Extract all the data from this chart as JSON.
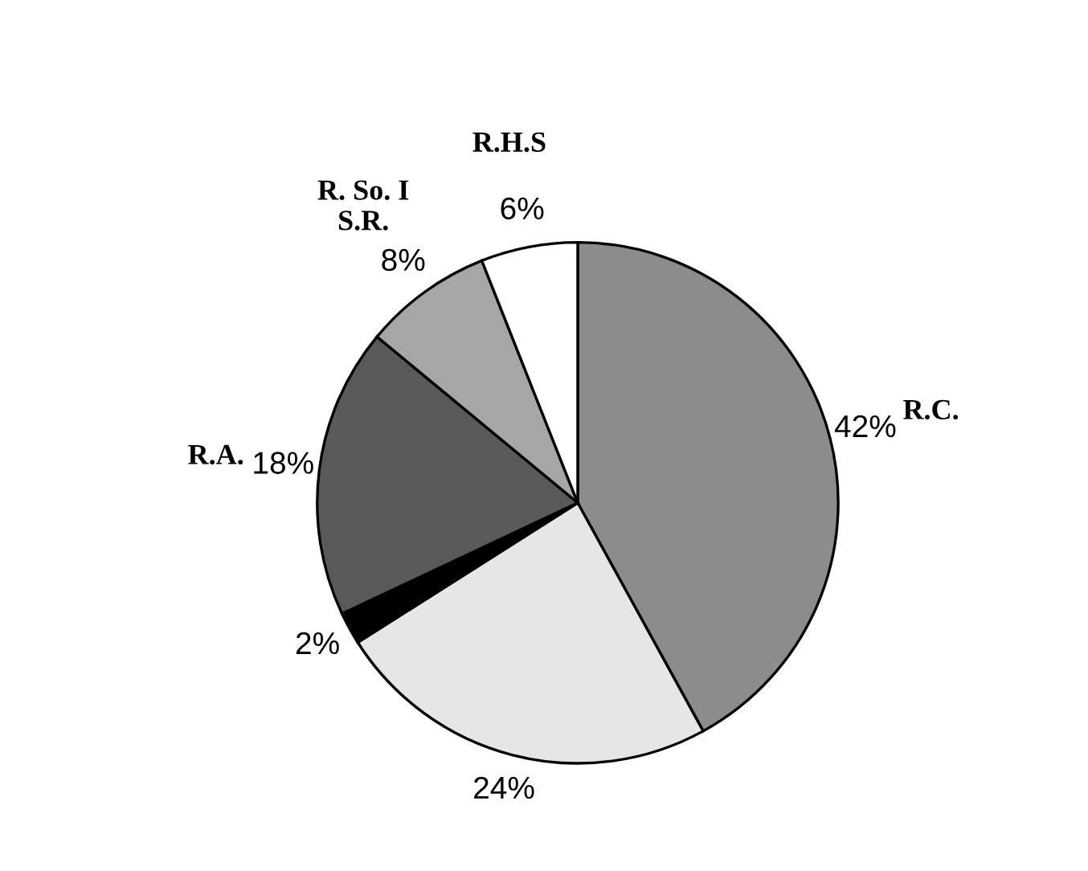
{
  "chart_data": {
    "type": "pie",
    "categories": [
      "R.C.",
      null,
      null,
      "R.A.",
      "R. So. I\nS.R.",
      "R.H.S"
    ],
    "values": [
      42,
      24,
      2,
      18,
      8,
      6
    ],
    "colors": [
      "#8c8c8c",
      "#e6e6e6",
      "#000000",
      "#595959",
      "#a6a6a6",
      "#ffffff"
    ],
    "value_labels": [
      "42%",
      "24%",
      "2%",
      "18%",
      "8%",
      "6%"
    ]
  }
}
